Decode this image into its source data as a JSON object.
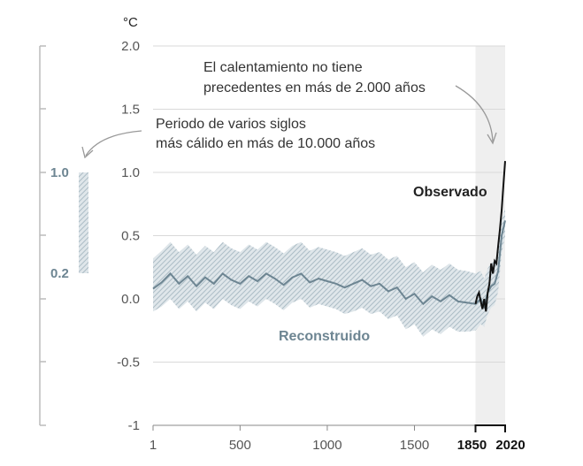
{
  "chart_data": {
    "type": "line",
    "unit": "°C",
    "ylim": [
      -1.0,
      2.0
    ],
    "xlim": [
      1,
      2020
    ],
    "y_ticks": [
      "2.0",
      "1.5",
      "1.0",
      "0.5",
      "0.0",
      "-0.5",
      "-1"
    ],
    "x_ticks": [
      "1",
      "500",
      "1000",
      "1500"
    ],
    "x_ticks_bold": [
      "1850",
      "2020"
    ],
    "highlight_period": [
      1850,
      2020
    ],
    "series": [
      {
        "name": "Reconstruido",
        "style": "line with hatched uncertainty band",
        "x": [
          1,
          50,
          100,
          150,
          200,
          250,
          300,
          350,
          400,
          450,
          500,
          550,
          600,
          650,
          700,
          750,
          800,
          850,
          900,
          950,
          1000,
          1050,
          1100,
          1150,
          1200,
          1250,
          1300,
          1350,
          1400,
          1450,
          1500,
          1550,
          1600,
          1650,
          1700,
          1750,
          1800,
          1850,
          1880,
          1900,
          1920,
          1940,
          1960,
          1980,
          2000,
          2020
        ],
        "values": [
          0.08,
          0.13,
          0.2,
          0.12,
          0.18,
          0.1,
          0.17,
          0.12,
          0.2,
          0.15,
          0.12,
          0.18,
          0.14,
          0.2,
          0.16,
          0.11,
          0.17,
          0.2,
          0.13,
          0.16,
          0.14,
          0.12,
          0.09,
          0.12,
          0.15,
          0.1,
          0.12,
          0.06,
          0.09,
          0.0,
          0.04,
          -0.04,
          0.02,
          -0.02,
          0.03,
          -0.02,
          -0.03,
          -0.04,
          0.0,
          -0.06,
          0.05,
          0.1,
          0.12,
          0.22,
          0.5,
          0.62
        ],
        "upper": [
          0.32,
          0.38,
          0.45,
          0.37,
          0.43,
          0.35,
          0.42,
          0.37,
          0.45,
          0.4,
          0.37,
          0.43,
          0.39,
          0.45,
          0.41,
          0.36,
          0.42,
          0.45,
          0.38,
          0.41,
          0.39,
          0.37,
          0.34,
          0.37,
          0.4,
          0.35,
          0.37,
          0.31,
          0.34,
          0.25,
          0.29,
          0.21,
          0.27,
          0.23,
          0.28,
          0.23,
          0.22,
          0.2,
          0.22,
          0.16,
          0.24,
          0.28,
          0.3,
          0.38,
          0.62,
          0.72
        ],
        "lower": [
          -0.1,
          -0.06,
          0.0,
          -0.08,
          -0.02,
          -0.1,
          -0.03,
          -0.08,
          0.0,
          -0.05,
          -0.08,
          -0.02,
          -0.06,
          0.0,
          -0.04,
          -0.09,
          -0.03,
          0.0,
          -0.07,
          -0.04,
          -0.06,
          -0.08,
          -0.12,
          -0.1,
          -0.07,
          -0.12,
          -0.1,
          -0.16,
          -0.13,
          -0.24,
          -0.2,
          -0.3,
          -0.24,
          -0.28,
          -0.22,
          -0.26,
          -0.26,
          -0.25,
          -0.2,
          -0.22,
          -0.12,
          -0.07,
          -0.05,
          0.06,
          0.36,
          0.5
        ]
      },
      {
        "name": "Observado",
        "x": [
          1850,
          1860,
          1870,
          1880,
          1890,
          1900,
          1910,
          1920,
          1930,
          1940,
          1950,
          1960,
          1970,
          1980,
          1990,
          2000,
          2010,
          2020
        ],
        "values": [
          -0.04,
          0.02,
          0.05,
          -0.02,
          -0.08,
          0.0,
          -0.1,
          0.05,
          0.12,
          0.28,
          0.2,
          0.3,
          0.28,
          0.42,
          0.55,
          0.7,
          0.9,
          1.09
        ]
      }
    ],
    "side_bar": {
      "label_top": "1.0",
      "label_bottom": "0.2",
      "range": [
        0.2,
        1.0
      ]
    },
    "annotations": [
      "El calentamiento no tiene",
      "precedentes en más de 2.000 años",
      "Periodo de varios siglos",
      "más cálido en más de 10.000 años"
    ],
    "grid": true
  },
  "colors": {
    "reconstructed": "#6d8592",
    "band": "#9fb2bd",
    "observed": "#111111",
    "highlight": "#efefef",
    "grid": "#d9d9d9"
  }
}
